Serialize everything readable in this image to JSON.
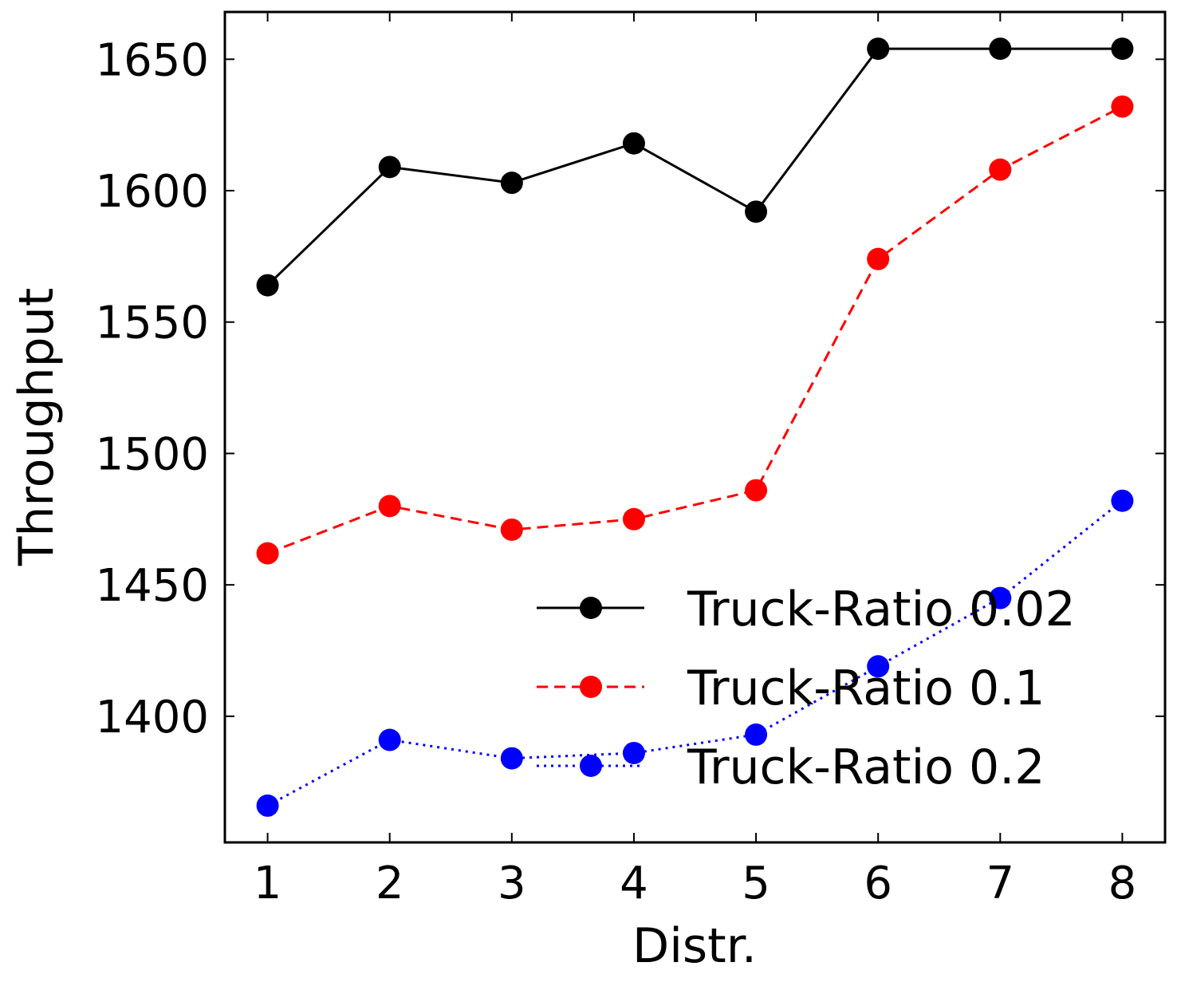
{
  "chart_data": {
    "type": "line",
    "xlabel": "Distr.",
    "ylabel": "Throughput",
    "xlim": [
      0.65,
      8.35
    ],
    "ylim": [
      1352,
      1668
    ],
    "xticks": [
      1,
      2,
      3,
      4,
      5,
      6,
      7,
      8
    ],
    "yticks": [
      1400,
      1450,
      1500,
      1550,
      1600,
      1650
    ],
    "grid": false,
    "legend_position": "lower-right",
    "series": [
      {
        "name": "Truck-Ratio 0.02",
        "color": "#000000",
        "line_style": "solid",
        "marker": "circle",
        "x": [
          1,
          2,
          3,
          4,
          5,
          6,
          7,
          8
        ],
        "y": [
          1564,
          1609,
          1603,
          1618,
          1592,
          1654,
          1654,
          1654
        ]
      },
      {
        "name": "Truck-Ratio 0.1",
        "color": "#ff0000",
        "line_style": "dashed",
        "marker": "circle",
        "x": [
          1,
          2,
          3,
          4,
          5,
          6,
          7,
          8
        ],
        "y": [
          1462,
          1480,
          1471,
          1475,
          1486,
          1574,
          1608,
          1632
        ]
      },
      {
        "name": "Truck-Ratio 0.2",
        "color": "#0000ff",
        "line_style": "dotted",
        "marker": "circle",
        "x": [
          1,
          2,
          3,
          4,
          5,
          6,
          7,
          8
        ],
        "y": [
          1366,
          1391,
          1384,
          1386,
          1393,
          1419,
          1445,
          1482
        ]
      }
    ]
  }
}
